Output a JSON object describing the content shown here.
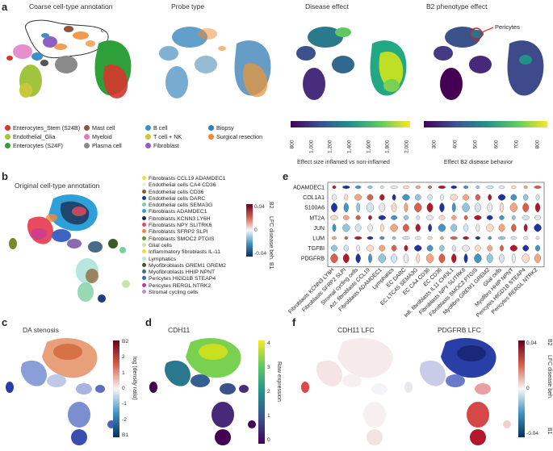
{
  "panels": {
    "a": "a",
    "b": "b",
    "c": "c",
    "d": "d",
    "e": "e",
    "f": "f"
  },
  "panel_a": {
    "titles": [
      "Coarse cell-type annotation",
      "Probe type",
      "Disease effect",
      "B2 phenotype effect"
    ],
    "cluster_label": "c",
    "pericytes_label": "Pericytes",
    "legend_col1": [
      {
        "label": "Enterocytes_Stem (S24B)",
        "color": "#d6352c"
      },
      {
        "label": "Endothelial_Glia",
        "color": "#a0c43d"
      },
      {
        "label": "Enterocytes (S24F)",
        "color": "#2ea03a"
      }
    ],
    "legend_col2": [
      {
        "label": "Mast cell",
        "color": "#8c5640"
      },
      {
        "label": "Myeloid",
        "color": "#e07bc6"
      },
      {
        "label": "Plasma cell",
        "color": "#8a8a8a"
      }
    ],
    "legend_col3": [
      {
        "label": "B cell",
        "color": "#3d8fc9"
      },
      {
        "label": "T cell + NK",
        "color": "#c8c83a"
      },
      {
        "label": "Fibroblast",
        "color": "#8f5ec4"
      }
    ],
    "legend_col4": [
      {
        "label": "Biopsy",
        "color": "#2e7fb8"
      },
      {
        "label": "Surgical resection",
        "color": "#f0872a"
      }
    ],
    "disease_colorbar": {
      "ticks": [
        "800",
        "1,000",
        "1,200",
        "1,400",
        "1,600",
        "1,800",
        "2,000"
      ],
      "label": "Effect size inflamed vs non-inflamed"
    },
    "b2_colorbar": {
      "ticks": [
        "300",
        "400",
        "500",
        "600",
        "700",
        "800"
      ],
      "label": "Effect B2 disease behavior"
    }
  },
  "panel_b": {
    "title": "Original cell-type annotation",
    "legend": [
      {
        "label": "Fibroblasts CCL19 ADAMDEC1",
        "color": "#e8e23a"
      },
      {
        "label": "Endothelial cells CA4 CD36",
        "color": "#f2eed0"
      },
      {
        "label": "Endothelial cells CD36",
        "color": "#8c5a2a"
      },
      {
        "label": "Endothelial cells DARC",
        "color": "#1a3a8a"
      },
      {
        "label": "Endothelial cells SEMA3G",
        "color": "#7ccfa0"
      },
      {
        "label": "Fibroblasts ADAMDEC1",
        "color": "#2e9fd8"
      },
      {
        "label": "Fibroblasts KCNN3 LY6H",
        "color": "#1b2a4a"
      },
      {
        "label": "Fibroblasts NPY SLITRK6",
        "color": "#e94b5c"
      },
      {
        "label": "Fibroblasts SFRP2 SLPI",
        "color": "#f08a3a"
      },
      {
        "label": "Fibroblasts SMOC2 PTGIS",
        "color": "#5a9a3a"
      },
      {
        "label": "Glial cells",
        "color": "#cfe3a8"
      },
      {
        "label": "Inflammatory fibroblasts IL-11",
        "color": "#e8e23a"
      },
      {
        "label": "Lymphatics",
        "color": "#b7e6e0"
      },
      {
        "label": "Myofibroblasts GREM1 GREM2",
        "color": "#3a5a2a"
      },
      {
        "label": "Myofibroblasts HHIP NPNT",
        "color": "#4a6a8a"
      },
      {
        "label": "Pericytes HIGD1B STEAP4",
        "color": "#3f63c2"
      },
      {
        "label": "Pericytes RERGL NTRK2",
        "color": "#c43a9a"
      },
      {
        "label": "Stromal cycling cells",
        "color": "#c88ad8"
      }
    ]
  },
  "lfc_colorbar_b": {
    "ticks": [
      "0.04",
      "0",
      "-0.04"
    ],
    "label_top": "B2",
    "label": "LFC disease beh.",
    "label_bottom": "B1"
  },
  "panel_c": {
    "title": "DA stenosis",
    "ticks": [
      "B2",
      "2",
      "1",
      "0",
      "-1",
      "-2",
      "B1"
    ],
    "label": "log (density ratio)"
  },
  "panel_d": {
    "title": "CDH11",
    "ticks": [
      "4",
      "3",
      "2",
      "1",
      "0"
    ],
    "label": "Raw expression"
  },
  "panel_e": {
    "genes": [
      "ADAMDEC1",
      "COL1A1",
      "S100A6",
      "MT2A",
      "JUN",
      "LUM",
      "TGFBI",
      "PDGFRB"
    ],
    "celltypes": [
      "Fibroblasts KCNN3 LY6H",
      "Fibroblasts SFRP2 SLPI",
      "Stromal cycling cells",
      "Act. fibroblasts CCL19",
      "Fibroblasts ADAMDEC1",
      "Lymphatics",
      "EC DARC",
      "EC LTC4S SEMA3G",
      "EC CA4 CD36",
      "EC CD36",
      "Infl. fibroblasts IL11 CHI3L1",
      "Fibroblasts NPY SLITRK6",
      "Fibroblasts SMOC2 PTGIS",
      "Myofibro GREM1 GREM2",
      "Glial cells",
      "Myofibro HHIP NPNT",
      "Pericytes HIGD1B STEAP4",
      "Pericytes RERGL NTRK2"
    ]
  },
  "panel_f": {
    "titles": [
      "CDH11 LFC",
      "PDGFRB LFC"
    ],
    "ticks": [
      "0.04",
      "0",
      "-0.04"
    ],
    "label_top": "B2",
    "label": "LFC disease beh.",
    "label_bottom": "B1"
  },
  "colors": {
    "red": "#b2182b",
    "blue": "#2132a0",
    "viridis_dark": "#440154",
    "viridis_mid": "#21918c",
    "viridis_light": "#fde725"
  }
}
